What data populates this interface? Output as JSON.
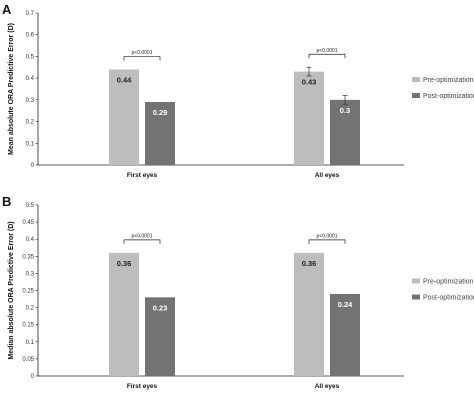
{
  "colors": {
    "pre": "#bdbdbd",
    "post": "#737373",
    "axis": "#222222"
  },
  "chart_data": [
    {
      "type": "bar",
      "panel": "A",
      "ylabel": "Mean absolute ORA Predictive Error (D)",
      "ylim": [
        0,
        0.7
      ],
      "yticks": [
        "0",
        "0.1",
        "0.2",
        "0.3",
        "0.4",
        "0.5",
        "0.6",
        "0.7"
      ],
      "categories": [
        "First eyes",
        "All eyes"
      ],
      "series": [
        {
          "name": "Pre-optimization",
          "values": [
            0.44,
            0.43
          ],
          "labels": [
            "0.44",
            "0.43"
          ],
          "errors": [
            0,
            0.02
          ]
        },
        {
          "name": "Post-optimization",
          "values": [
            0.29,
            0.3
          ],
          "labels": [
            "0.29",
            "0.3"
          ],
          "errors": [
            0,
            0.02
          ]
        }
      ],
      "significance": [
        "p<0.0001",
        "p<0.0001"
      ],
      "legend": "right"
    },
    {
      "type": "bar",
      "panel": "B",
      "ylabel": "Median absolute ORA Predictive Error (D)",
      "ylim": [
        0,
        0.5
      ],
      "yticks": [
        "0",
        "0.05",
        "0.1",
        "0.15",
        "0.2",
        "0.25",
        "0.3",
        "0.35",
        "0.4",
        "0.45",
        "0.5"
      ],
      "categories": [
        "First eyes",
        "All eyes"
      ],
      "series": [
        {
          "name": "Pre-optimization",
          "values": [
            0.36,
            0.36
          ],
          "labels": [
            "0.36",
            "0.36"
          ],
          "errors": [
            0,
            0
          ]
        },
        {
          "name": "Post-optimization",
          "values": [
            0.23,
            0.24
          ],
          "labels": [
            "0.23",
            "0.24"
          ],
          "errors": [
            0,
            0
          ]
        }
      ],
      "significance": [
        "p<0.0001",
        "p<0.0001"
      ],
      "legend": "right"
    }
  ]
}
